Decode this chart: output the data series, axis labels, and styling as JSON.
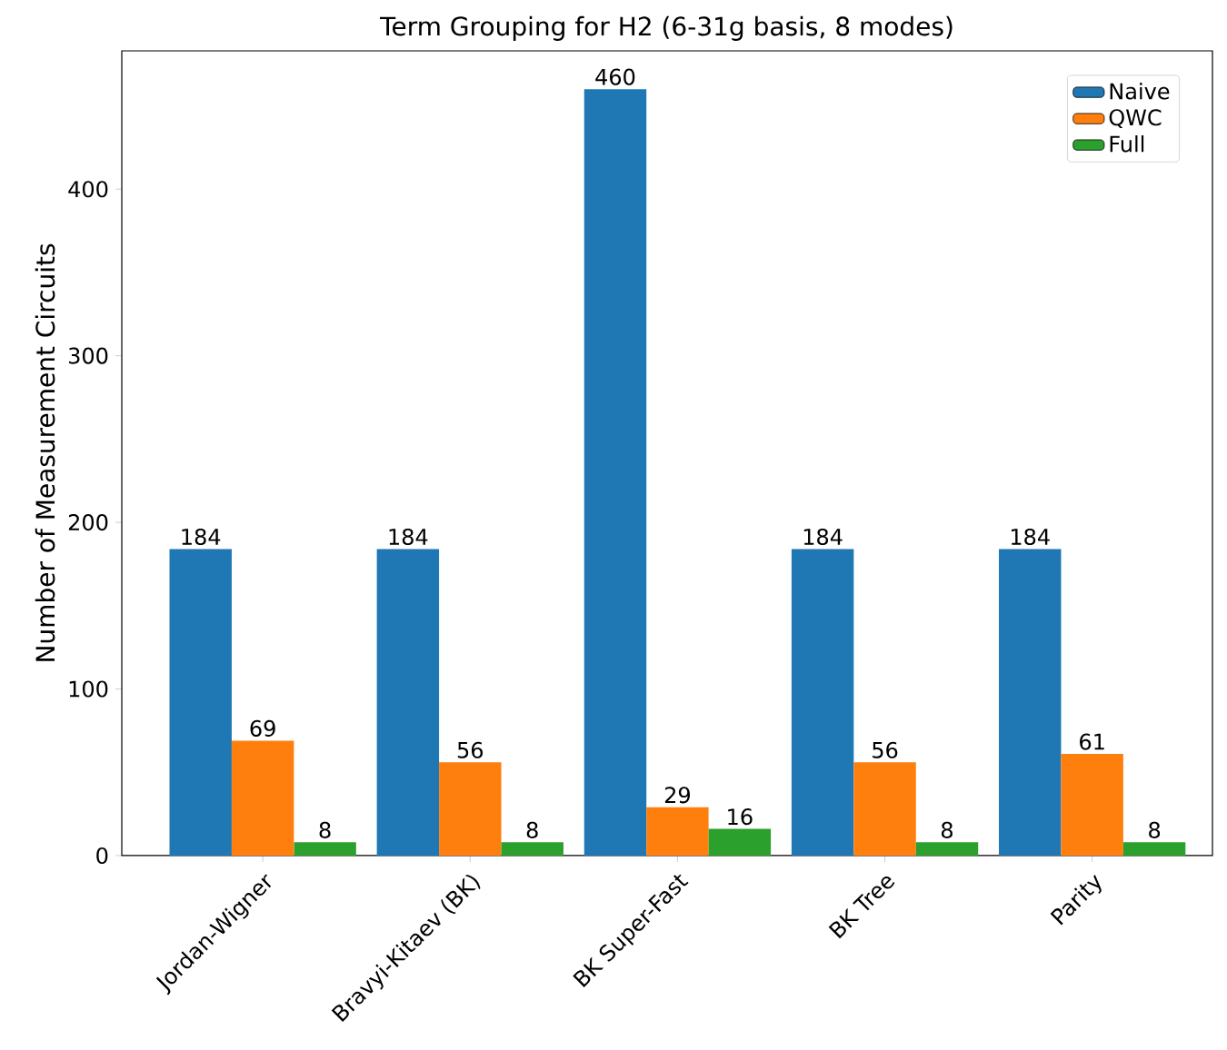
{
  "chart_data": {
    "type": "bar",
    "title": "Term Grouping for H2 (6-31g basis, 8 modes)",
    "ylabel": "Number of Measurement Circuits",
    "categories": [
      "Jordan-Wigner",
      "Bravyi-Kitaev (BK)",
      "BK Super-Fast",
      "BK Tree",
      "Parity"
    ],
    "series": [
      {
        "name": "Naive",
        "color": "#1f77b4",
        "values": [
          184,
          184,
          460,
          184,
          184
        ]
      },
      {
        "name": "QWC",
        "color": "#ff7f0e",
        "values": [
          69,
          56,
          29,
          56,
          61
        ]
      },
      {
        "name": "Full",
        "color": "#2ca02c",
        "values": [
          8,
          8,
          16,
          8,
          8
        ]
      }
    ],
    "ylim": [
      0,
      483
    ],
    "yticks": [
      0,
      100,
      200,
      300,
      400
    ],
    "data_labels": true,
    "legend": "top right",
    "grid": false
  }
}
